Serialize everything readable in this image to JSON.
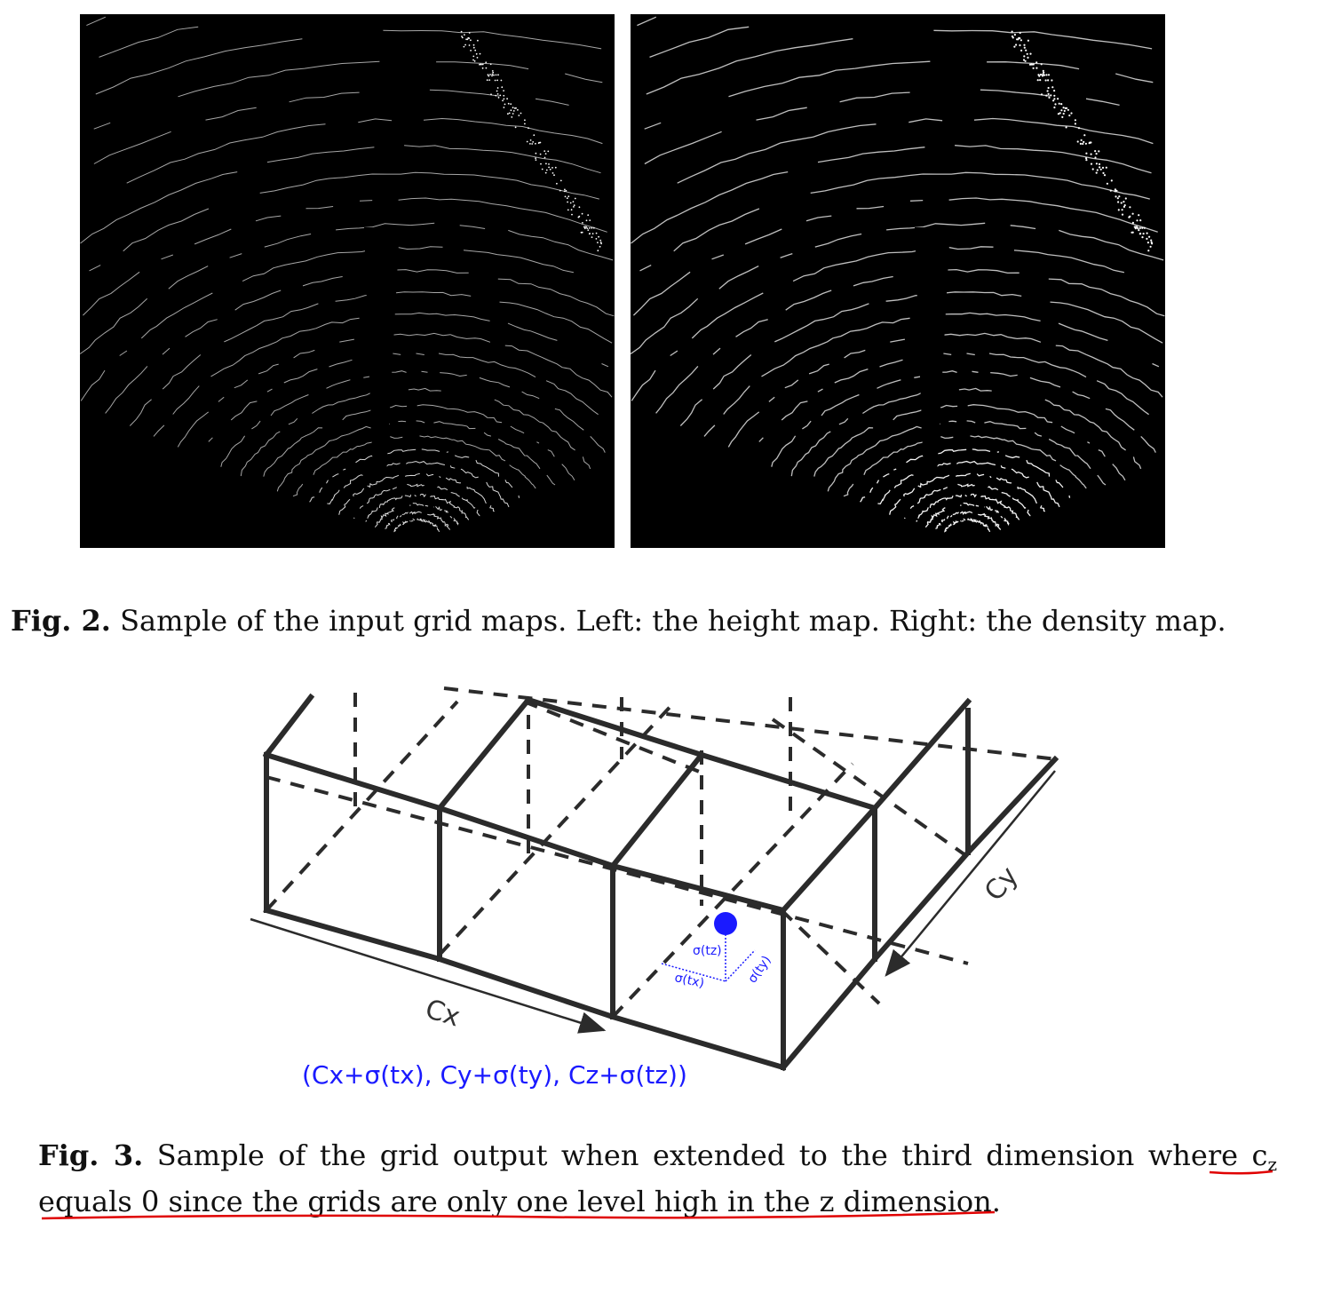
{
  "figure2": {
    "panels": [
      {
        "name": "height map",
        "bg": "#000000"
      },
      {
        "name": "density map",
        "bg": "#000000"
      }
    ],
    "caption_label": "Fig. 2.",
    "caption_text": " Sample of the input grid maps. Left: the height map. Right: the density map."
  },
  "figure3": {
    "labels": {
      "cx": "Cx",
      "cy": "Cy",
      "tz": "σ(tz)",
      "tx": "σ(tx)",
      "ty": "σ(ty)",
      "formula": "(Cx+σ(tx), Cy+σ(ty), Cz+σ(tz))"
    },
    "colors": {
      "accent": "#1a1aff",
      "lines": "#2b2b2b",
      "underline": "#e00000"
    },
    "caption_label": "Fig. 3.",
    "caption_line1": " Sample of the grid output when extended to the third dimension where c",
    "caption_sub": "z",
    "caption_line2": "equals 0 since the grids are only one level high in the z dimension."
  }
}
